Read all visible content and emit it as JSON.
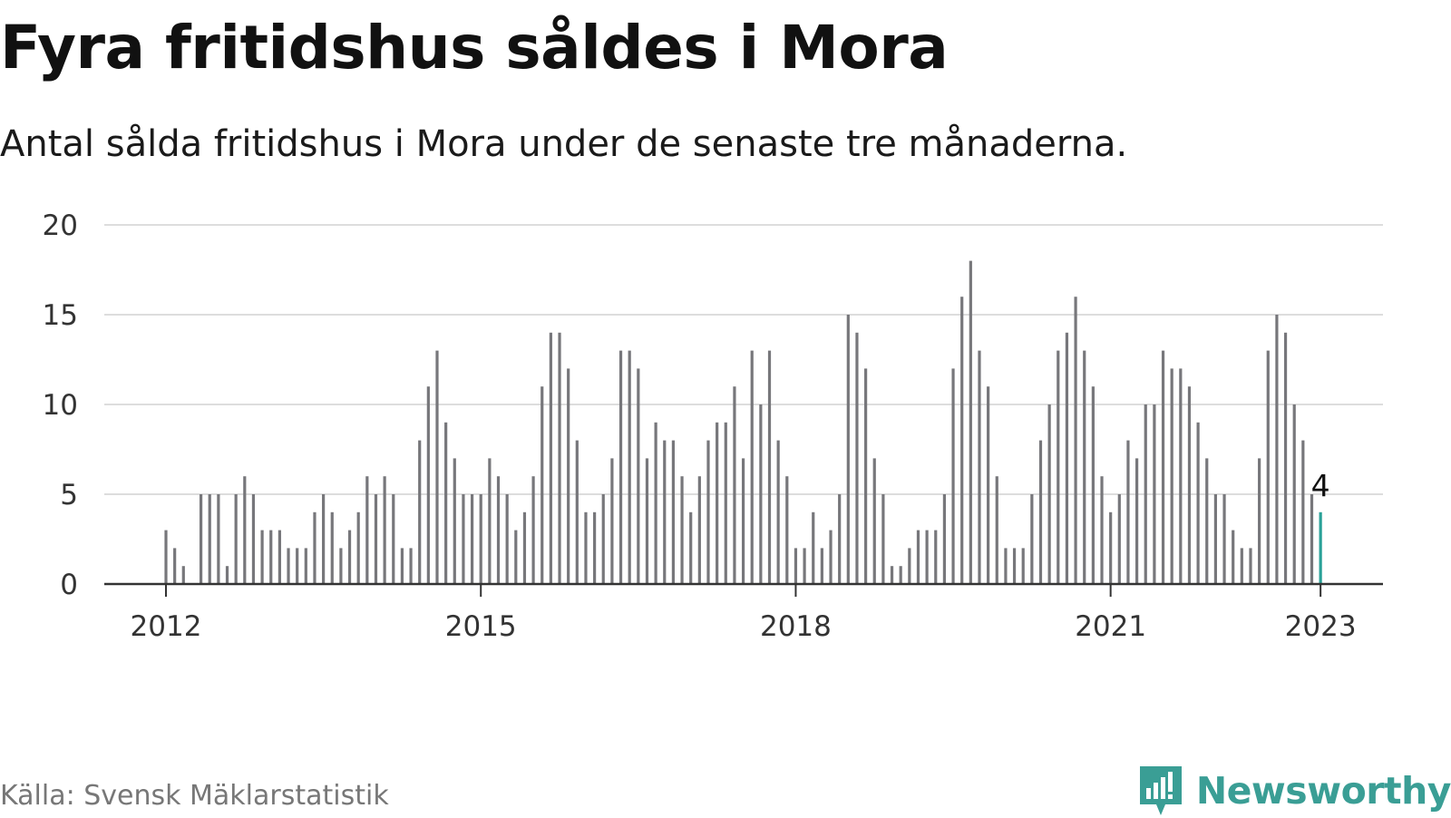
{
  "chart_data": {
    "type": "bar",
    "title": "Fyra fritidshus såldes i Mora",
    "subtitle": "Antal sålda fritidshus i Mora under de senaste tre månaderna.",
    "source": "Källa: Svensk Mäklarstatistik",
    "x_start": "2012-01",
    "x_end": "2023-01",
    "x_ticks": [
      "2012",
      "2015",
      "2018",
      "2021",
      "2023"
    ],
    "y_ticks": [
      0,
      5,
      10,
      15,
      20
    ],
    "ylim": [
      0,
      20
    ],
    "grid": true,
    "values": [
      3,
      2,
      1,
      0,
      5,
      5,
      5,
      1,
      5,
      6,
      5,
      3,
      3,
      3,
      2,
      2,
      2,
      4,
      5,
      4,
      2,
      3,
      4,
      6,
      5,
      6,
      5,
      2,
      2,
      8,
      11,
      13,
      9,
      7,
      5,
      5,
      5,
      7,
      6,
      5,
      3,
      4,
      6,
      11,
      14,
      14,
      12,
      8,
      4,
      4,
      5,
      7,
      13,
      13,
      12,
      7,
      9,
      8,
      8,
      6,
      4,
      6,
      8,
      9,
      9,
      11,
      7,
      13,
      10,
      13,
      8,
      6,
      2,
      2,
      4,
      2,
      3,
      5,
      15,
      14,
      12,
      7,
      5,
      1,
      1,
      2,
      3,
      3,
      3,
      5,
      12,
      16,
      18,
      13,
      11,
      6,
      2,
      2,
      2,
      5,
      8,
      10,
      13,
      14,
      16,
      13,
      11,
      6,
      4,
      5,
      8,
      7,
      10,
      10,
      13,
      12,
      12,
      11,
      9,
      7,
      5,
      5,
      3,
      2,
      2,
      7,
      13,
      15,
      14,
      10,
      8,
      5,
      4
    ],
    "highlight_last": true,
    "last_value_label": "4",
    "colors": {
      "bar": "#77777b",
      "highlight": "#2aa198",
      "grid": "#dddddd",
      "axis": "#333333"
    }
  },
  "brand": {
    "name": "Newsworthy",
    "icon": "newsworthy-logo-icon",
    "color": "#3a9e95"
  }
}
